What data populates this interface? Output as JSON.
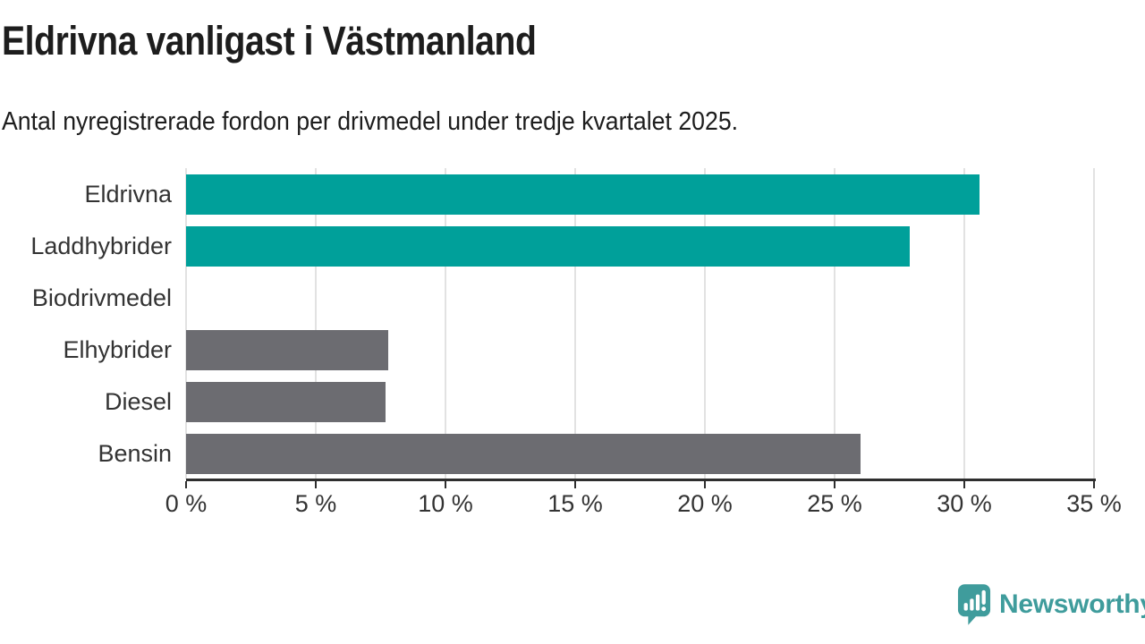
{
  "header": {
    "title": "Eldrivna vanligast i Västmanland",
    "subtitle": "Antal nyregistrerade fordon per drivmedel under tredje kvartalet 2025."
  },
  "colors": {
    "teal": "#00a09a",
    "gray": "#6c6c71",
    "axis": "#2e2e2e",
    "grid": "#e2e2e2",
    "label_text": "#333333",
    "logo_teal": "#3f9c9c"
  },
  "chart_data": {
    "type": "bar",
    "orientation": "horizontal",
    "title": "Eldrivna vanligast i Västmanland",
    "subtitle": "Antal nyregistrerade fordon per drivmedel under tredje kvartalet 2025.",
    "categories": [
      "Eldrivna",
      "Laddhybrider",
      "Biodrivmedel",
      "Elhybrider",
      "Diesel",
      "Bensin"
    ],
    "values": [
      30.6,
      27.9,
      0,
      7.8,
      7.7,
      26
    ],
    "bar_colors": [
      "#00a09a",
      "#00a09a",
      "#6c6c71",
      "#6c6c71",
      "#6c6c71",
      "#6c6c71"
    ],
    "xlabel": "",
    "ylabel": "",
    "xlim": [
      0,
      35
    ],
    "x_ticks": [
      0,
      5,
      10,
      15,
      20,
      25,
      30,
      35
    ],
    "x_tick_labels": [
      "0 %",
      "5 %",
      "10 %",
      "15 %",
      "20 %",
      "25 %",
      "30 %",
      "35 %"
    ],
    "grid": true,
    "legend": false
  },
  "footer": {
    "logo_text": "Newsworthy"
  }
}
